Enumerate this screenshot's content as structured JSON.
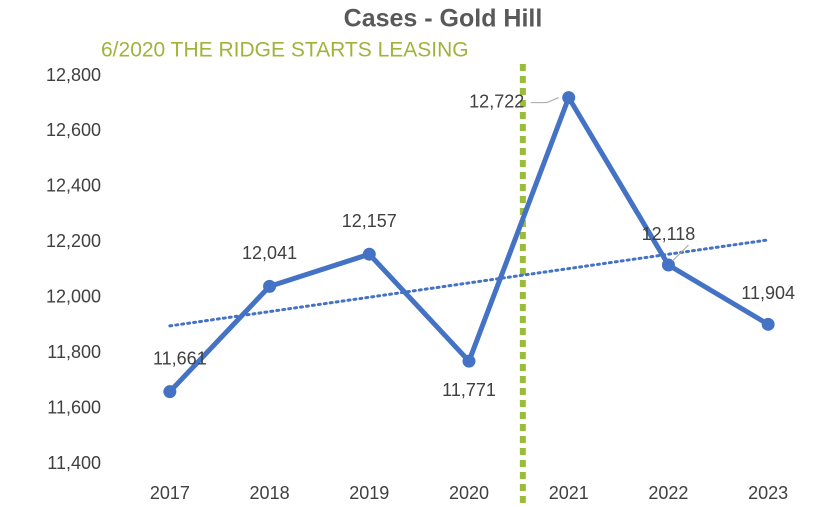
{
  "chart_data": {
    "type": "line",
    "title": "Cases - Gold Hill",
    "annotation": "6/2020 THE RIDGE STARTS LEASING",
    "categories": [
      "2017",
      "2018",
      "2019",
      "2020",
      "2021",
      "2022",
      "2023"
    ],
    "series": [
      {
        "name": "Cases",
        "color": "#4472c4",
        "values": [
          11661,
          12041,
          12157,
          11771,
          12722,
          12118,
          11904
        ],
        "value_labels": [
          "11,661",
          "12,041",
          "12,157",
          "11,771",
          "12,722",
          "12,118",
          "11,904"
        ]
      }
    ],
    "trendline": "linear",
    "ylim": [
      11400,
      12800
    ],
    "yticks": [
      {
        "value": 11400,
        "label": "11,400"
      },
      {
        "value": 11600,
        "label": "11,600"
      },
      {
        "value": 11800,
        "label": "11,800"
      },
      {
        "value": 12000,
        "label": "12,000"
      },
      {
        "value": 12200,
        "label": "12,200"
      },
      {
        "value": 12400,
        "label": "12,400"
      },
      {
        "value": 12600,
        "label": "12,600"
      },
      {
        "value": 12800,
        "label": "12,800"
      }
    ],
    "grid": false
  }
}
